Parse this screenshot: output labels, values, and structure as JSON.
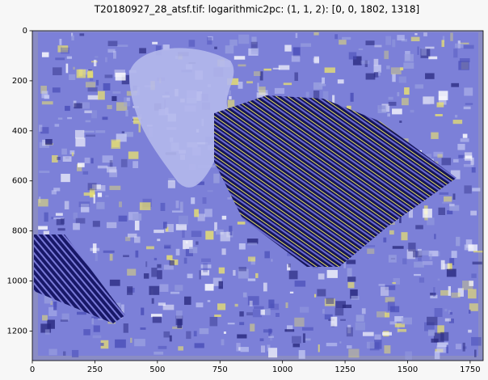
{
  "chart_data": {
    "type": "image",
    "title": "T20180927_28_atsf.tif: logarithmic2pc: (1, 1, 2): [0, 0, 1802, 1318]",
    "xlim": [
      0,
      1802
    ],
    "ylim": [
      1318,
      0
    ],
    "xticks": [
      0,
      250,
      500,
      750,
      1000,
      1250,
      1500,
      1750
    ],
    "yticks": [
      0,
      200,
      400,
      600,
      800,
      1000,
      1200
    ]
  }
}
